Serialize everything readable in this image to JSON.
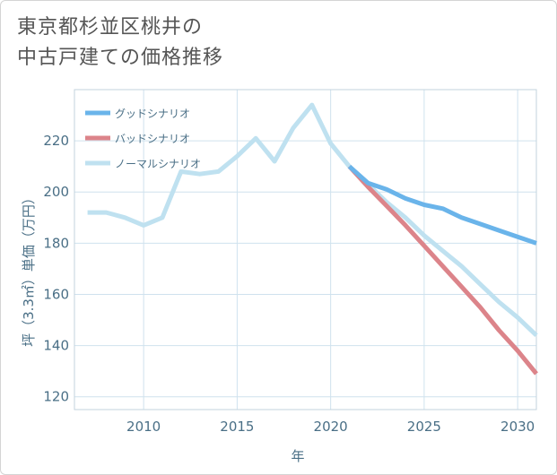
{
  "title": {
    "line1": "東京都杉並区桃井の",
    "line2": "中古戸建ての価格推移"
  },
  "colors": {
    "good": "#6ab4ea",
    "bad": "#dc848a",
    "normal": "#bfe1f0",
    "grid": "#cfe2ee",
    "axis_text": "#4a6f86"
  },
  "chart_data": {
    "type": "line",
    "title": "東京都杉並区桃井の中古戸建ての価格推移",
    "xlabel": "年",
    "ylabel": "坪（3.3㎡）単価（万円）",
    "xlim": [
      2006.3,
      2031
    ],
    "ylim": [
      115,
      240
    ],
    "x_ticks": [
      2010,
      2015,
      2020,
      2025,
      2030
    ],
    "y_ticks": [
      120,
      140,
      160,
      180,
      200,
      220
    ],
    "grid": true,
    "legend_position": "top-left",
    "series": [
      {
        "name": "グッドシナリオ",
        "key": "good",
        "x": [
          2021,
          2022,
          2023,
          2024,
          2025,
          2026,
          2027,
          2028,
          2029,
          2030,
          2031
        ],
        "y": [
          210,
          203.5,
          201,
          197.5,
          195,
          193.5,
          190,
          187.5,
          185,
          182.5,
          180
        ]
      },
      {
        "name": "バッドシナリオ",
        "key": "bad",
        "x": [
          2021,
          2022,
          2023,
          2024,
          2025,
          2026,
          2027,
          2028,
          2029,
          2030,
          2031
        ],
        "y": [
          210,
          202,
          194.5,
          187,
          179,
          171,
          163,
          155,
          146,
          138,
          129
        ]
      },
      {
        "name": "ノーマルシナリオ",
        "key": "normal",
        "x": [
          2007,
          2008,
          2009,
          2010,
          2011,
          2012,
          2013,
          2014,
          2015,
          2016,
          2017,
          2018,
          2019,
          2020,
          2021,
          2022,
          2023,
          2024,
          2025,
          2026,
          2027,
          2028,
          2029,
          2030,
          2031
        ],
        "y": [
          192,
          192,
          190,
          187,
          190,
          208,
          207,
          208,
          214,
          221,
          212,
          225,
          234,
          219,
          210,
          203,
          196,
          190,
          183,
          177,
          171,
          164,
          157,
          151,
          144
        ]
      }
    ]
  }
}
